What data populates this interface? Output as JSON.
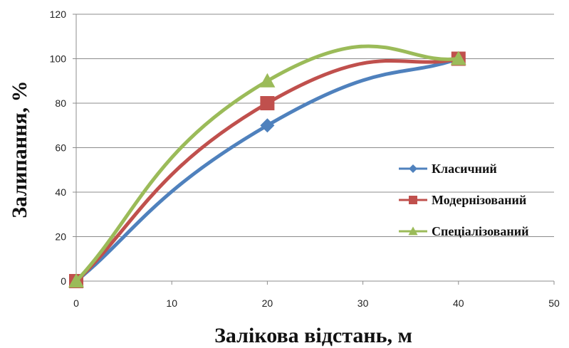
{
  "chart_data": {
    "type": "line",
    "xlabel": "Залікова відстань, м",
    "ylabel": "Залипання, %",
    "xlim": [
      0,
      50
    ],
    "ylim": [
      0,
      120
    ],
    "x_ticks": [
      "0",
      "10",
      "20",
      "30",
      "40",
      "50"
    ],
    "y_ticks": [
      "0",
      "20",
      "40",
      "60",
      "80",
      "100",
      "120"
    ],
    "grid": "horizontal",
    "legend_position": "right",
    "smooth": true,
    "x": [
      0,
      20,
      40
    ],
    "series": [
      {
        "name": "Класичний",
        "values": [
          0,
          70,
          100
        ],
        "color": "#4f81bd",
        "marker": "diamond"
      },
      {
        "name": "Модернізований",
        "values": [
          0,
          80,
          100
        ],
        "color": "#c0504d",
        "marker": "square"
      },
      {
        "name": "Спеціалізований",
        "values": [
          0,
          90,
          100
        ],
        "color": "#9bbb59",
        "marker": "triangle"
      }
    ]
  }
}
